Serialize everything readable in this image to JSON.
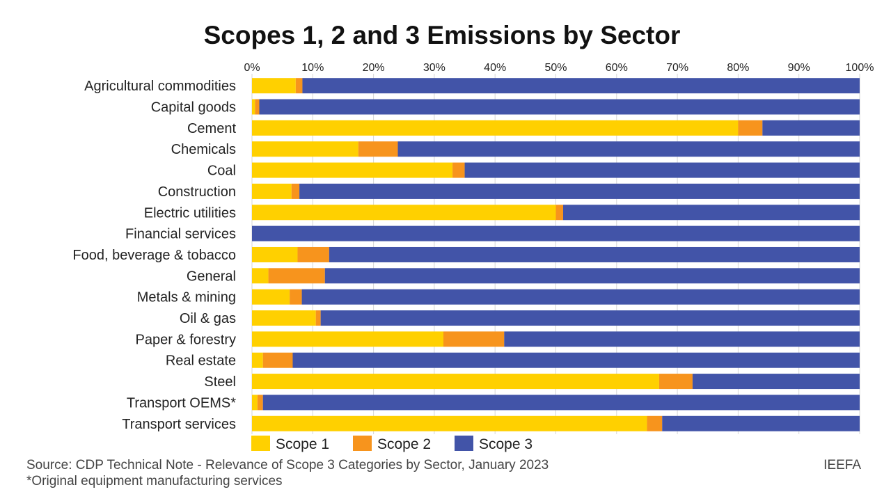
{
  "chart_data": {
    "type": "bar",
    "orientation": "horizontal",
    "stacked": true,
    "title": "Scopes 1, 2 and 3 Emissions by Sector",
    "xlim": [
      0,
      100
    ],
    "x_ticks": [
      "0%",
      "10%",
      "20%",
      "30%",
      "40%",
      "50%",
      "60%",
      "70%",
      "80%",
      "90%",
      "100%"
    ],
    "grid": true,
    "legend_position": "bottom-left",
    "categories": [
      "Agricultural commodities",
      "Capital goods",
      "Cement",
      "Chemicals",
      "Coal",
      "Construction",
      "Electric utilities",
      "Financial services",
      "Food, beverage & tobacco",
      "General",
      "Metals & mining",
      "Oil & gas",
      "Paper & forestry",
      "Real estate",
      "Steel",
      "Transport OEMS*",
      "Transport services"
    ],
    "series": [
      {
        "name": "Scope 1",
        "color": "#FFD000",
        "values": [
          7.2,
          0.5,
          80.0,
          17.5,
          33.0,
          6.5,
          50.0,
          0.0,
          7.5,
          2.7,
          6.2,
          10.5,
          31.5,
          1.8,
          67.0,
          0.9,
          65.0
        ]
      },
      {
        "name": "Scope 2",
        "color": "#F7941D",
        "values": [
          1.1,
          0.7,
          4.0,
          6.5,
          2.0,
          1.3,
          1.2,
          0.0,
          5.2,
          9.3,
          2.0,
          0.8,
          10.0,
          4.9,
          5.5,
          0.9,
          2.5
        ]
      },
      {
        "name": "Scope 3",
        "color": "#4254A8",
        "values": [
          91.7,
          98.8,
          16.0,
          76.0,
          65.0,
          92.2,
          48.8,
          100.0,
          87.3,
          88.0,
          91.8,
          88.7,
          58.5,
          93.3,
          27.5,
          98.2,
          32.5
        ]
      }
    ]
  },
  "footer": {
    "source": "Source: CDP Technical Note - Relevance of Scope 3 Categories by Sector, January 2023",
    "note": "*Original equipment manufacturing services",
    "brand": "IEEFA"
  }
}
